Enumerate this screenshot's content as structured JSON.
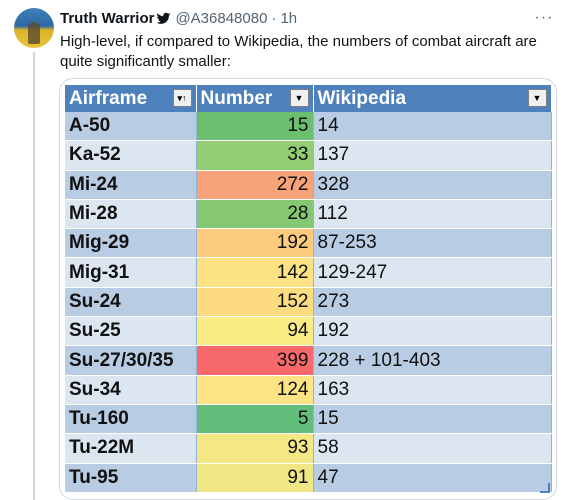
{
  "tweet": {
    "author_name": "Truth Warrior",
    "handle": "@A36848080",
    "separator": "·",
    "time": "1h",
    "text": "High-level, if compared to Wikipedia, the numbers of combat aircraft are quite significantly smaller:",
    "verified_icon": "bird-icon",
    "more_icon": "ellipsis-icon"
  },
  "table": {
    "headers": [
      "Airframe",
      "Number",
      "Wikipedia"
    ],
    "filter_icons": [
      "sort-asc-icon",
      "dropdown-icon",
      "dropdown-icon"
    ],
    "rows": [
      {
        "airframe": "A-50",
        "number": "15",
        "wikipedia": "14",
        "number_color": "#6cbf6e"
      },
      {
        "airframe": "Ka-52",
        "number": "33",
        "wikipedia": "137",
        "number_color": "#92cc73"
      },
      {
        "airframe": "Mi-24",
        "number": "272",
        "wikipedia": "328",
        "number_color": "#f8a27a"
      },
      {
        "airframe": "Mi-28",
        "number": "28",
        "wikipedia": "112",
        "number_color": "#86c872"
      },
      {
        "airframe": "Mig-29",
        "number": "192",
        "wikipedia": "87-253",
        "number_color": "#fccb7e"
      },
      {
        "airframe": "Mig-31",
        "number": "142",
        "wikipedia": "129-247",
        "number_color": "#fde283"
      },
      {
        "airframe": "Su-24",
        "number": "152",
        "wikipedia": "273",
        "number_color": "#fddc81"
      },
      {
        "airframe": "Su-25",
        "number": "94",
        "wikipedia": "192",
        "number_color": "#fbeb84"
      },
      {
        "airframe": "Su-27/30/35",
        "number": "399",
        "wikipedia": "228 + 101-403",
        "number_color": "#f8696b"
      },
      {
        "airframe": "Su-34",
        "number": "124",
        "wikipedia": "163",
        "number_color": "#fde383"
      },
      {
        "airframe": "Tu-160",
        "number": "5",
        "wikipedia": "15",
        "number_color": "#63be7b"
      },
      {
        "airframe": "Tu-22M",
        "number": "93",
        "wikipedia": "58",
        "number_color": "#f4e884"
      },
      {
        "airframe": "Tu-95",
        "number": "91",
        "wikipedia": "47",
        "number_color": "#f0e784"
      }
    ]
  },
  "colors": {
    "header_bg": "#4f81bd",
    "band_dark": "#b8cce4",
    "band_light": "#dce6f1"
  }
}
